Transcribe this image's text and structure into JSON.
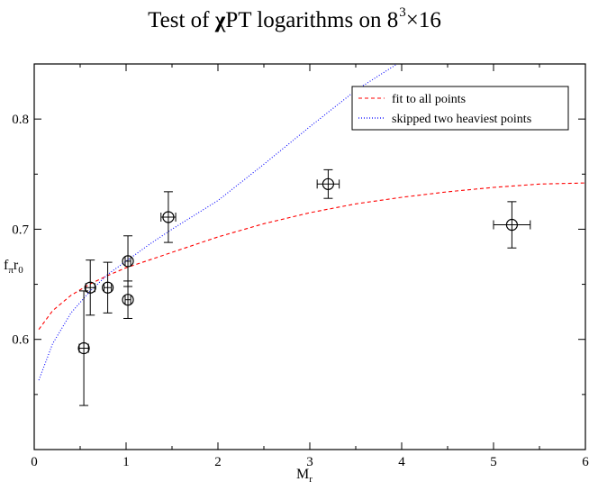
{
  "chart_data": {
    "type": "scatter",
    "title_prefix": "Test of ",
    "title_chi": "χ",
    "title_mid": "PT logarithms on 8",
    "title_sup": "3",
    "title_suffix": "×16",
    "xlabel_main": "M",
    "xlabel_sub": "r",
    "ylabel_main": "f",
    "ylabel_sub1": "π",
    "ylabel_mid": "r",
    "ylabel_sub2": "0",
    "xlim": [
      0,
      6
    ],
    "ylim": [
      0.5,
      0.85
    ],
    "xticks": [
      0,
      1,
      2,
      3,
      4,
      5,
      6
    ],
    "yticks": [
      0.6,
      0.7,
      0.8
    ],
    "xtick_labels": [
      "0",
      "1",
      "2",
      "3",
      "4",
      "5",
      "6"
    ],
    "ytick_labels": [
      "0.6",
      "0.7",
      "0.8"
    ],
    "points": [
      {
        "x": 0.54,
        "y": 0.592,
        "xerr": 0.05,
        "yerr": 0.052
      },
      {
        "x": 0.61,
        "y": 0.647,
        "xerr": 0.05,
        "yerr": 0.025
      },
      {
        "x": 0.8,
        "y": 0.647,
        "xerr": 0.04,
        "yerr": 0.023
      },
      {
        "x": 1.02,
        "y": 0.671,
        "xerr": 0.03,
        "yerr": 0.023
      },
      {
        "x": 1.02,
        "y": 0.636,
        "xerr": 0.03,
        "yerr": 0.017
      },
      {
        "x": 1.46,
        "y": 0.711,
        "xerr": 0.08,
        "yerr": 0.023
      },
      {
        "x": 3.2,
        "y": 0.741,
        "xerr": 0.12,
        "yerr": 0.013
      },
      {
        "x": 5.2,
        "y": 0.704,
        "xerr": 0.2,
        "yerr": 0.021
      }
    ],
    "series": [
      {
        "name": "fit to all points",
        "color": "#ff0000",
        "dash": "dashed",
        "x": [
          0.05,
          0.2,
          0.4,
          0.6,
          0.8,
          1.0,
          1.25,
          1.5,
          2.0,
          2.5,
          3.0,
          3.5,
          4.0,
          4.5,
          5.0,
          5.5,
          6.0
        ],
        "y": [
          0.609,
          0.626,
          0.64,
          0.65,
          0.658,
          0.665,
          0.672,
          0.679,
          0.693,
          0.705,
          0.715,
          0.723,
          0.729,
          0.734,
          0.738,
          0.741,
          0.742
        ]
      },
      {
        "name": "skipped two heaviest points",
        "color": "#0000ff",
        "dash": "dotted",
        "x": [
          0.05,
          0.2,
          0.4,
          0.6,
          0.8,
          1.0,
          1.25,
          1.5,
          2.0,
          2.5,
          3.0,
          3.5,
          3.95
        ],
        "y": [
          0.563,
          0.596,
          0.624,
          0.643,
          0.659,
          0.671,
          0.686,
          0.7,
          0.726,
          0.759,
          0.793,
          0.826,
          0.85
        ]
      }
    ],
    "legend_position": "top-right",
    "grid": false
  }
}
